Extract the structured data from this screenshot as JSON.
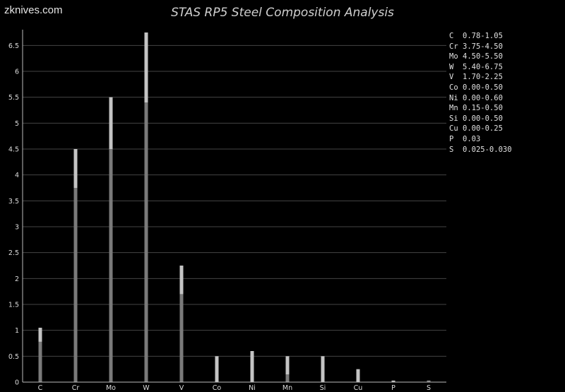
{
  "site": "zknives.com",
  "chart_data": {
    "type": "bar",
    "title": "STAS RP5 Steel Composition Analysis",
    "categories": [
      "C",
      "Cr",
      "Mo",
      "W",
      "V",
      "Co",
      "Ni",
      "Mn",
      "Si",
      "Cu",
      "P",
      "S"
    ],
    "series": [
      {
        "values": [
          0.78,
          3.75,
          4.5,
          5.4,
          1.7,
          0.0,
          0.0,
          0.15,
          0.0,
          0.0,
          0.03,
          0.025
        ]
      },
      {
        "values": [
          1.05,
          4.5,
          5.5,
          6.75,
          2.25,
          0.5,
          0.6,
          0.5,
          0.5,
          0.25,
          0.03,
          0.03
        ]
      }
    ],
    "ylim": [
      0,
      6.75
    ],
    "yticks": [
      "0",
      "0.5",
      "1",
      "1.5",
      "2",
      "2.5",
      "3",
      "3.5",
      "4",
      "4.5",
      "5",
      "5.5",
      "6",
      "6.5"
    ],
    "grid": true,
    "legend_position": "right",
    "legend": [
      {
        "element": "C",
        "range": "0.78-1.05"
      },
      {
        "element": "Cr",
        "range": "3.75-4.50"
      },
      {
        "element": "Mo",
        "range": "4.50-5.50"
      },
      {
        "element": "W",
        "range": "5.40-6.75"
      },
      {
        "element": "V",
        "range": "1.70-2.25"
      },
      {
        "element": "Co",
        "range": "0.00-0.50"
      },
      {
        "element": "Ni",
        "range": "0.00-0.60"
      },
      {
        "element": "Mn",
        "range": "0.15-0.50"
      },
      {
        "element": "Si",
        "range": "0.00-0.50"
      },
      {
        "element": "Cu",
        "range": "0.00-0.25"
      },
      {
        "element": "P",
        "range": "0.03"
      },
      {
        "element": "S",
        "range": "0.025-0.030"
      }
    ],
    "colors": {
      "min_bar": "#7a7a7a",
      "max_bar": "#c4c4c4",
      "grid": "#444444",
      "axis": "#bbbbbb",
      "text": "#dddddd"
    }
  }
}
